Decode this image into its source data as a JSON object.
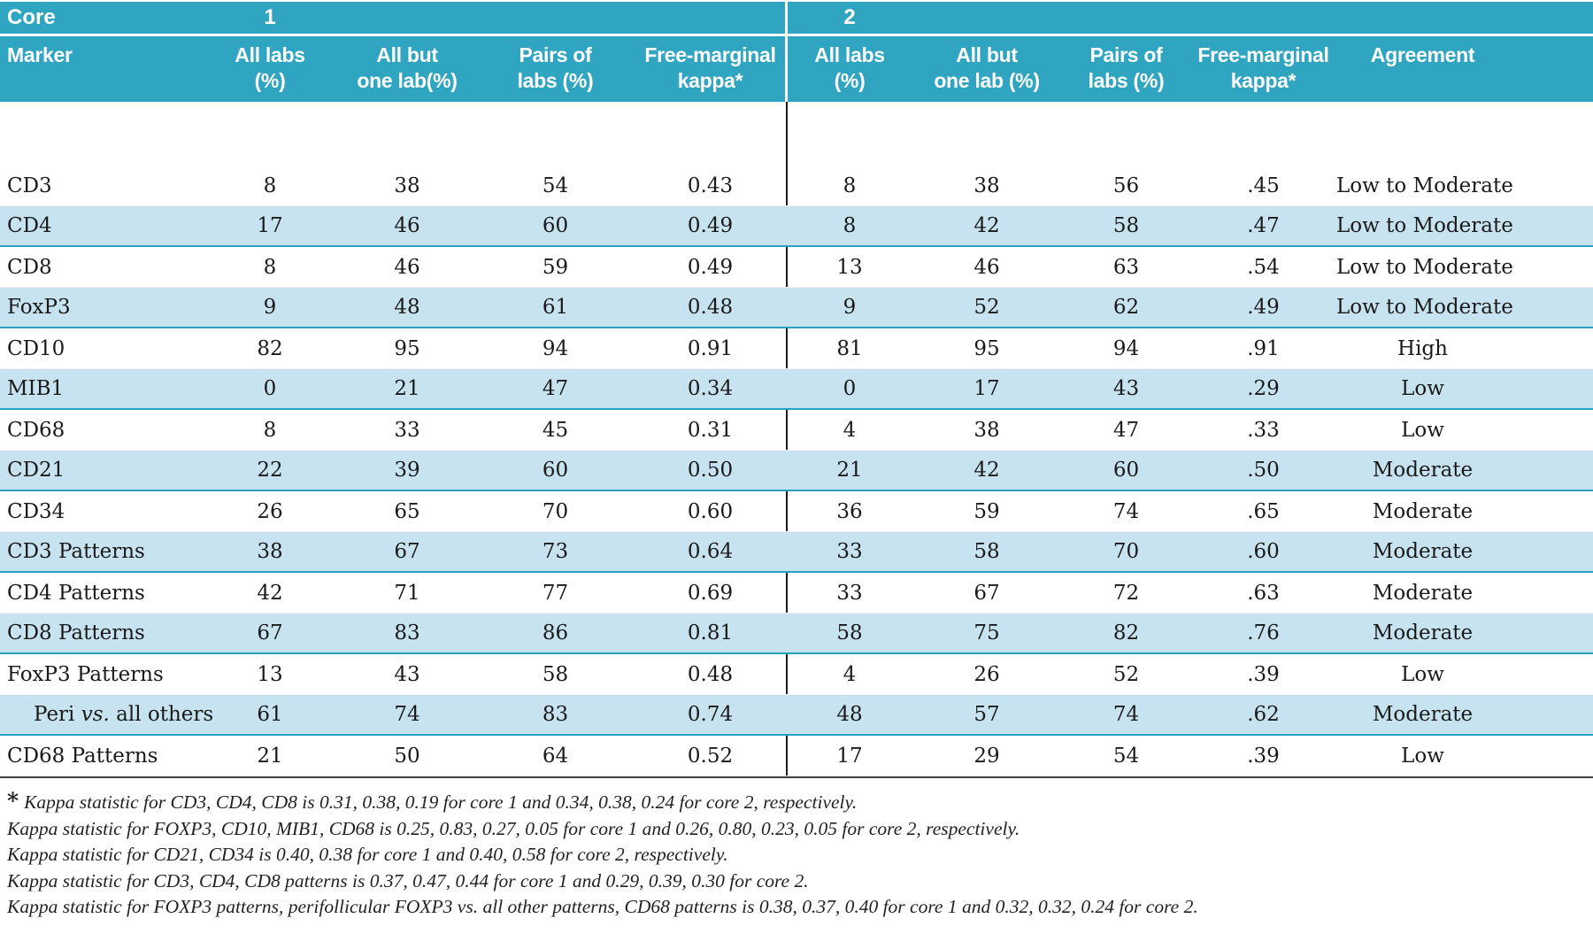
{
  "table": {
    "header": {
      "core_label": "Core",
      "core1_num": "1",
      "core2_num": "2",
      "marker_label": "Marker",
      "core1_cols": [
        [
          "All labs",
          "(%)"
        ],
        [
          "All but",
          "one lab(%)"
        ],
        [
          "Pairs of",
          "labs (%)"
        ],
        [
          "Free-marginal",
          "kappa*"
        ]
      ],
      "core2_cols": [
        [
          "All labs",
          "(%)"
        ],
        [
          "All but",
          "one lab (%)"
        ],
        [
          "Pairs of",
          "labs (%)"
        ],
        [
          "Free-marginal",
          "kappa*"
        ]
      ],
      "agreement_label": "Agreement"
    },
    "rows": [
      {
        "marker": "CD3",
        "core1": [
          "8",
          "38",
          "54",
          "0.43"
        ],
        "core2": [
          "8",
          "38",
          "56",
          ".45"
        ],
        "agreement": "Low to Moderate",
        "shaded": false
      },
      {
        "marker": "CD4",
        "core1": [
          "17",
          "46",
          "60",
          "0.49"
        ],
        "core2": [
          "8",
          "42",
          "58",
          ".47"
        ],
        "agreement": "Low to Moderate",
        "shaded": true
      },
      {
        "marker": "CD8",
        "core1": [
          "8",
          "46",
          "59",
          "0.49"
        ],
        "core2": [
          "13",
          "46",
          "63",
          ".54"
        ],
        "agreement": "Low to Moderate",
        "shaded": false
      },
      {
        "marker": "FoxP3",
        "core1": [
          "9",
          "48",
          "61",
          "0.48"
        ],
        "core2": [
          "9",
          "52",
          "62",
          ".49"
        ],
        "agreement": "Low to Moderate",
        "shaded": true
      },
      {
        "marker": "CD10",
        "core1": [
          "82",
          "95",
          "94",
          "0.91"
        ],
        "core2": [
          "81",
          "95",
          "94",
          ".91"
        ],
        "agreement": "High",
        "shaded": false
      },
      {
        "marker": "MIB1",
        "core1": [
          "0",
          "21",
          "47",
          "0.34"
        ],
        "core2": [
          "0",
          "17",
          "43",
          ".29"
        ],
        "agreement": "Low",
        "shaded": true
      },
      {
        "marker": "CD68",
        "core1": [
          "8",
          "33",
          "45",
          "0.31"
        ],
        "core2": [
          "4",
          "38",
          "47",
          ".33"
        ],
        "agreement": "Low",
        "shaded": false
      },
      {
        "marker": "CD21",
        "core1": [
          "22",
          "39",
          "60",
          "0.50"
        ],
        "core2": [
          "21",
          "42",
          "60",
          ".50"
        ],
        "agreement": "Moderate",
        "shaded": true
      },
      {
        "marker": "CD34",
        "core1": [
          "26",
          "65",
          "70",
          "0.60"
        ],
        "core2": [
          "36",
          "59",
          "74",
          ".65"
        ],
        "agreement": "Moderate",
        "shaded": false
      },
      {
        "marker": "CD3 Patterns",
        "core1": [
          "38",
          "67",
          "73",
          "0.64"
        ],
        "core2": [
          "33",
          "58",
          "70",
          ".60"
        ],
        "agreement": "Moderate",
        "shaded": true
      },
      {
        "marker": "CD4 Patterns",
        "core1": [
          "42",
          "71",
          "77",
          "0.69"
        ],
        "core2": [
          "33",
          "67",
          "72",
          ".63"
        ],
        "agreement": "Moderate",
        "shaded": false
      },
      {
        "marker": "CD8 Patterns",
        "core1": [
          "67",
          "83",
          "86",
          "0.81"
        ],
        "core2": [
          "58",
          "75",
          "82",
          ".76"
        ],
        "agreement": "Moderate",
        "shaded": true
      },
      {
        "marker": "FoxP3 Patterns",
        "core1": [
          "13",
          "43",
          "58",
          "0.48"
        ],
        "core2": [
          "4",
          "26",
          "52",
          ".39"
        ],
        "agreement": "Low",
        "shaded": false
      },
      {
        "marker": "Peri vs. all others",
        "indent": true,
        "core1": [
          "61",
          "74",
          "83",
          "0.74"
        ],
        "core2": [
          "48",
          "57",
          "74",
          ".62"
        ],
        "agreement": "Moderate",
        "shaded": true
      },
      {
        "marker": "CD68 Patterns",
        "core1": [
          "21",
          "50",
          "64",
          "0.52"
        ],
        "core2": [
          "17",
          "29",
          "54",
          ".39"
        ],
        "agreement": "Low",
        "shaded": false
      }
    ],
    "footnote_marker": "*",
    "footnotes": [
      "Kappa statistic for CD3, CD4, CD8 is 0.31, 0.38, 0.19 for core 1 and 0.34, 0.38, 0.24 for core 2, respectively.",
      "Kappa statistic for FOXP3, CD10, MIB1, CD68 is 0.25, 0.83, 0.27, 0.05 for core 1 and 0.26, 0.80, 0.23, 0.05 for core 2, respectively.",
      "Kappa statistic for CD21, CD34 is 0.40, 0.38 for core 1 and 0.40, 0.58 for core 2, respectively.",
      "Kappa statistic for CD3, CD4, CD8 patterns is 0.37, 0.47, 0.44 for core 1 and 0.29, 0.39, 0.30 for core 2.",
      "Kappa statistic for FOXP3 patterns, perifollicular FOXP3 vs. all other patterns, CD68 patterns is 0.38, 0.37, 0.40 for core 1 and 0.32, 0.32, 0.24 for core 2."
    ]
  },
  "colors": {
    "header_teal": "#2fa5c2",
    "row_blue": "#c6e3ef",
    "row_rule_teal": "#2b9fc0",
    "divider_black": "#1b1b1b"
  }
}
